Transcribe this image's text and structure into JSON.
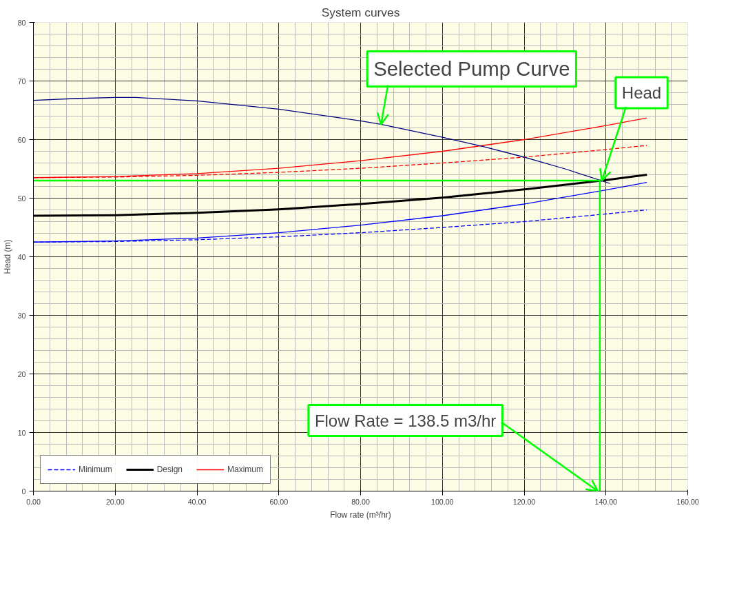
{
  "chart_data": {
    "type": "line",
    "title": "System curves",
    "xlabel": "Flow rate (m³/hr)",
    "ylabel": "Head (m)",
    "xlim": [
      0,
      160
    ],
    "ylim": [
      0,
      80
    ],
    "xticks": [
      {
        "value": 0,
        "label": "0.00"
      },
      {
        "value": 20,
        "label": "20.00"
      },
      {
        "value": 40,
        "label": "40.00"
      },
      {
        "value": 60,
        "label": "60.00"
      },
      {
        "value": 80,
        "label": "80.00"
      },
      {
        "value": 100,
        "label": "100.00"
      },
      {
        "value": 120,
        "label": "120.00"
      },
      {
        "value": 140,
        "label": "140.00"
      },
      {
        "value": 160,
        "label": "160.00"
      }
    ],
    "yticks": [
      0,
      10,
      20,
      30,
      40,
      50,
      60,
      70,
      80
    ],
    "grid": true,
    "legend": "bottom left",
    "marker": "none",
    "series": [
      {
        "name": "Minimum",
        "color": "#0000ff",
        "line_style": "dashed",
        "x": [
          0,
          20,
          40,
          60,
          80,
          100,
          120,
          140,
          150
        ],
        "values": [
          42.5,
          42.6,
          42.9,
          43.4,
          44.1,
          45.0,
          46.0,
          47.3,
          48.0
        ]
      },
      {
        "name": "Design",
        "color": "#000000",
        "line_style": "solid",
        "x": [
          0,
          20,
          40,
          60,
          80,
          100,
          120,
          140,
          150
        ],
        "values": [
          47.0,
          47.1,
          47.5,
          48.1,
          49.0,
          50.1,
          51.5,
          53.1,
          54.0
        ]
      },
      {
        "name": "Maximum",
        "color": "#ff0000",
        "line_style": "solid",
        "x": [
          0,
          20,
          40,
          60,
          80,
          100,
          120,
          140,
          150
        ],
        "values": [
          53.5,
          53.7,
          54.2,
          55.1,
          56.4,
          58.0,
          60.0,
          62.4,
          63.7
        ]
      },
      {
        "color": "#0000ff",
        "line_style": "solid",
        "x": [
          0,
          20,
          40,
          60,
          80,
          100,
          120,
          140,
          150
        ],
        "values": [
          42.5,
          42.7,
          43.2,
          44.1,
          45.4,
          47.0,
          49.0,
          51.4,
          52.7
        ]
      },
      {
        "color": "#ff0000",
        "line_style": "dashed",
        "x": [
          0,
          20,
          40,
          60,
          80,
          100,
          120,
          140,
          150
        ],
        "values": [
          53.5,
          53.6,
          53.9,
          54.4,
          55.1,
          56.0,
          57.0,
          58.3,
          59.0
        ]
      },
      {
        "color": "#000080",
        "line_style": "solid",
        "x": [
          0,
          10,
          20,
          25,
          40,
          60,
          80,
          85,
          100,
          110,
          120,
          130,
          141
        ],
        "values": [
          66.7,
          67.0,
          67.2,
          67.2,
          66.6,
          65.2,
          63.2,
          62.6,
          60.4,
          58.8,
          57.0,
          55.0,
          52.5
        ]
      },
      {
        "color": "#00ff00",
        "line_style": "solid",
        "x": [
          0,
          138.5,
          138.5
        ],
        "values": [
          53,
          53,
          0
        ]
      }
    ],
    "annotations": [
      {
        "text": "Selected Pump Curve",
        "x": 85,
        "y": 62.6
      },
      {
        "text": "Head",
        "x": 139,
        "y": 53
      },
      {
        "text": "Flow Rate = 138.5 m3/hr",
        "x": 138,
        "y": 0
      }
    ]
  }
}
